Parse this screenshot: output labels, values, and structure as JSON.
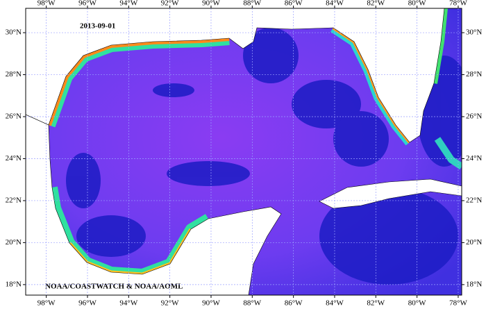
{
  "map": {
    "date": "2013-09-01",
    "credit": "NOAA/COASTWATCH & NOAA/AOML",
    "xlim": [
      -99.0,
      -77.83
    ],
    "ylim": [
      17.5,
      31.16
    ],
    "xticks": [
      {
        "value": -98,
        "label": "98°W"
      },
      {
        "value": -96,
        "label": "96°W"
      },
      {
        "value": -94,
        "label": "94°W"
      },
      {
        "value": -92,
        "label": "92°W"
      },
      {
        "value": -90,
        "label": "90°W"
      },
      {
        "value": -88,
        "label": "88°W"
      },
      {
        "value": -86,
        "label": "86°W"
      },
      {
        "value": -84,
        "label": "84°W"
      },
      {
        "value": -82,
        "label": "82°W"
      },
      {
        "value": -80,
        "label": "80°W"
      },
      {
        "value": -78,
        "label": "78°W"
      }
    ],
    "yticks": [
      {
        "value": 18,
        "label": "18°N"
      },
      {
        "value": 20,
        "label": "20°N"
      },
      {
        "value": 22,
        "label": "22°N"
      },
      {
        "value": 24,
        "label": "24°N"
      },
      {
        "value": 26,
        "label": "26°N"
      },
      {
        "value": 28,
        "label": "28°N"
      },
      {
        "value": 30,
        "label": "30°N"
      }
    ]
  }
}
